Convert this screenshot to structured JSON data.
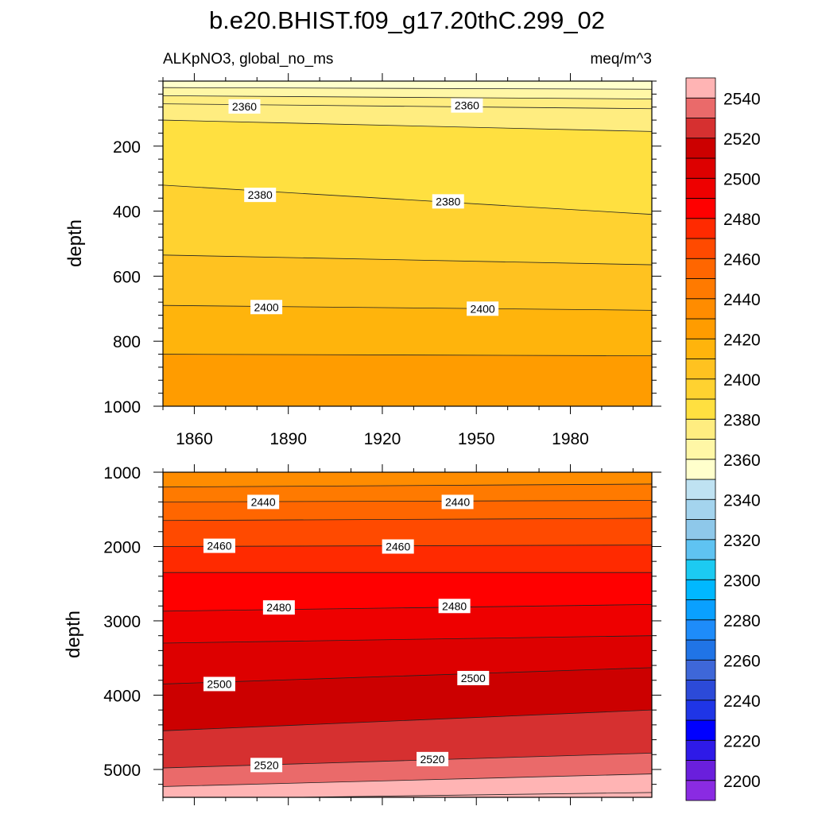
{
  "title": "b.e20.BHIST.f09_g17.20thC.299_02",
  "chart_data": [
    {
      "type": "contour",
      "panel": "upper",
      "left_label": "ALKpNO3, global_no_ms",
      "right_label": "meq/m^3",
      "ylabel": "depth",
      "xlim": [
        1850,
        2006
      ],
      "ylim": [
        0,
        1000
      ],
      "y_reversed": true,
      "x_ticks": [
        1860,
        1890,
        1920,
        1950,
        1980
      ],
      "y_ticks": [
        200,
        400,
        600,
        800,
        1000
      ],
      "contours": [
        {
          "level": 2350,
          "depths": [
            [
              1850,
              20
            ],
            [
              2006,
              25
            ]
          ]
        },
        {
          "level": 2355,
          "depths": [
            [
              1850,
              45
            ],
            [
              2006,
              55
            ]
          ]
        },
        {
          "level": 2360,
          "depths": [
            [
              1850,
              70
            ],
            [
              2006,
              85
            ]
          ]
        },
        {
          "level": 2370,
          "depths": [
            [
              1850,
              120
            ],
            [
              2006,
              155
            ]
          ]
        },
        {
          "level": 2380,
          "depths": [
            [
              1850,
              320
            ],
            [
              2006,
              410
            ]
          ]
        },
        {
          "level": 2390,
          "depths": [
            [
              1850,
              535
            ],
            [
              2006,
              565
            ]
          ]
        },
        {
          "level": 2400,
          "depths": [
            [
              1850,
              690
            ],
            [
              2006,
              705
            ]
          ]
        },
        {
          "level": 2410,
          "depths": [
            [
              1850,
              840
            ],
            [
              2006,
              845
            ]
          ]
        }
      ],
      "contour_labels": [
        {
          "text": "2360",
          "year": 1876,
          "depth": 78
        },
        {
          "text": "2360",
          "year": 1947,
          "depth": 75
        },
        {
          "text": "2380",
          "year": 1881,
          "depth": 350
        },
        {
          "text": "2380",
          "year": 1941,
          "depth": 370
        },
        {
          "text": "2400",
          "year": 1883,
          "depth": 695
        },
        {
          "text": "2400",
          "year": 1952,
          "depth": 700
        }
      ]
    },
    {
      "type": "contour",
      "panel": "lower",
      "ylabel": "depth",
      "xlim": [
        1850,
        2006
      ],
      "ylim": [
        1000,
        5375
      ],
      "y_reversed": true,
      "y_ticks": [
        1000,
        2000,
        3000,
        4000,
        5000
      ],
      "contours": [
        {
          "level": 2430,
          "depths": [
            [
              1850,
              1200
            ],
            [
              2006,
              1160
            ]
          ]
        },
        {
          "level": 2440,
          "depths": [
            [
              1850,
              1400
            ],
            [
              2006,
              1380
            ]
          ]
        },
        {
          "level": 2450,
          "depths": [
            [
              1850,
              1650
            ],
            [
              2006,
              1620
            ]
          ]
        },
        {
          "level": 2460,
          "depths": [
            [
              1850,
              2000
            ],
            [
              2006,
              1980
            ]
          ]
        },
        {
          "level": 2470,
          "depths": [
            [
              1850,
              2350
            ],
            [
              2006,
              2350
            ]
          ]
        },
        {
          "level": 2480,
          "depths": [
            [
              1850,
              2870
            ],
            [
              2006,
              2780
            ]
          ]
        },
        {
          "level": 2490,
          "depths": [
            [
              1850,
              3300
            ],
            [
              2006,
              3200
            ]
          ]
        },
        {
          "level": 2500,
          "depths": [
            [
              1850,
              3850
            ],
            [
              2006,
              3630
            ]
          ]
        },
        {
          "level": 2510,
          "depths": [
            [
              1850,
              4480
            ],
            [
              2006,
              4200
            ]
          ]
        },
        {
          "level": 2520,
          "depths": [
            [
              1850,
              4980
            ],
            [
              2006,
              4780
            ]
          ]
        },
        {
          "level": 2530,
          "depths": [
            [
              1850,
              5230
            ],
            [
              2006,
              5060
            ]
          ]
        },
        {
          "level": 2540,
          "depths": [
            [
              1850,
              5400
            ],
            [
              2006,
              5310
            ]
          ]
        }
      ],
      "contour_labels": [
        {
          "text": "2440",
          "year": 1882,
          "depth": 1400
        },
        {
          "text": "2440",
          "year": 1944,
          "depth": 1400
        },
        {
          "text": "2460",
          "year": 1868,
          "depth": 1990
        },
        {
          "text": "2460",
          "year": 1925,
          "depth": 2000
        },
        {
          "text": "2480",
          "year": 1887,
          "depth": 2820
        },
        {
          "text": "2480",
          "year": 1943,
          "depth": 2800
        },
        {
          "text": "2500",
          "year": 1868,
          "depth": 3850
        },
        {
          "text": "2500",
          "year": 1949,
          "depth": 3770
        },
        {
          "text": "2520",
          "year": 1883,
          "depth": 4940
        },
        {
          "text": "2520",
          "year": 1936,
          "depth": 4860
        }
      ]
    }
  ],
  "colorbar": {
    "min": 2190,
    "step": 10,
    "colors": [
      "#8a2be2",
      "#6a1fdc",
      "#2e1ae8",
      "#0000ff",
      "#1f35e6",
      "#2c4ad8",
      "#3e67d8",
      "#2074e6",
      "#1e8cfa",
      "#0aa0ff",
      "#00b8ff",
      "#1ccaf2",
      "#5fc3f2",
      "#8ec8ea",
      "#a4d4ee",
      "#bfe2f2",
      "#ffffcc",
      "#fff7a6",
      "#ffed80",
      "#ffe040",
      "#ffd230",
      "#ffc220",
      "#ffb40c",
      "#ff9c00",
      "#ff8c00",
      "#ff7a00",
      "#ff6600",
      "#ff4a00",
      "#ff2a00",
      "#ff0000",
      "#ee0000",
      "#dd0000",
      "#cc0000",
      "#d63030",
      "#ea6a6a",
      "#ffb4b4"
    ],
    "tick_labels": [
      "2200",
      "2220",
      "2240",
      "2260",
      "2280",
      "2300",
      "2320",
      "2340",
      "2360",
      "2380",
      "2400",
      "2420",
      "2440",
      "2460",
      "2480",
      "2500",
      "2520",
      "2540"
    ]
  }
}
